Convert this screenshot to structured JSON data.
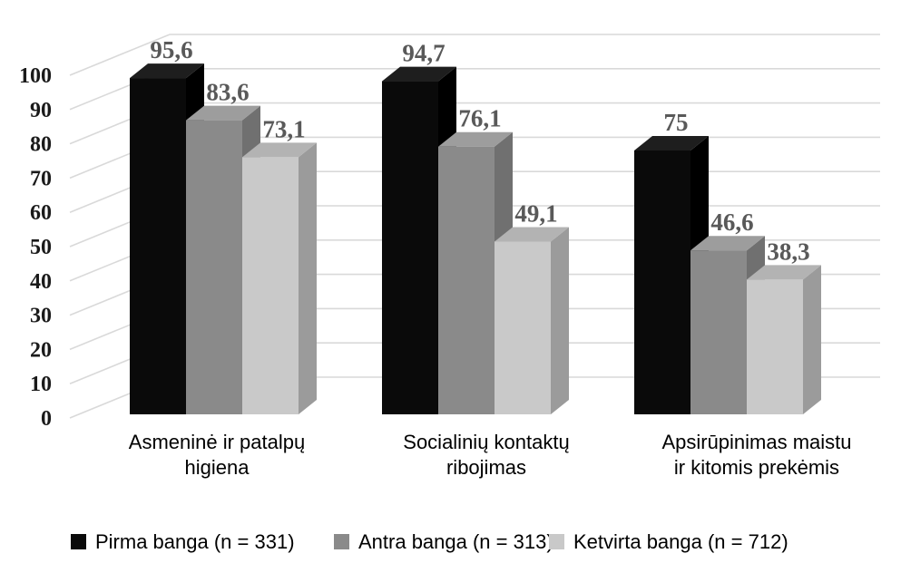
{
  "chart_data": {
    "type": "bar",
    "variant": "3d-clustered-column",
    "title": "",
    "categories": [
      "Asmeninė ir patalpų higiena",
      "Socialinių kontaktų ribojimas",
      "Apsirūpinimas maistu ir kitomis prekėmis"
    ],
    "category_label_lines": [
      [
        "Asmeninė ir patalpų",
        "higiena"
      ],
      [
        "Socialinių kontaktų",
        "ribojimas"
      ],
      [
        "Apsirūpinimas maistu",
        "ir kitomis prekėmis"
      ]
    ],
    "series": [
      {
        "name": "Pirma banga (n = 331)",
        "values": [
          95.6,
          94.7,
          75
        ],
        "labels": [
          "95,6",
          "94,7",
          "75"
        ],
        "front_color": "#0a0a0a",
        "top_color": "#1e1e1e",
        "side_color": "#000000"
      },
      {
        "name": "Antra banga (n = 313)",
        "values": [
          83.6,
          76.1,
          46.6
        ],
        "labels": [
          "83,6",
          "76,1",
          "46,6"
        ],
        "front_color": "#8a8a8a",
        "top_color": "#9d9d9d",
        "side_color": "#707070"
      },
      {
        "name": "Ketvirta banga (n = 712)",
        "values": [
          73.1,
          49.1,
          38.3
        ],
        "labels": [
          "73,1",
          "49,1",
          "38,3"
        ],
        "front_color": "#c9c9c9",
        "top_color": "#b3b3b3",
        "side_color": "#9b9b9b"
      }
    ],
    "y_axis": {
      "min": 0,
      "max": 100,
      "step": 10,
      "tick_labels": [
        "0",
        "10",
        "20",
        "30",
        "40",
        "50",
        "60",
        "70",
        "80",
        "90",
        "100"
      ]
    },
    "grid": true,
    "legend_position": "bottom",
    "decimal_separator": ",",
    "colors": {
      "value_label": "#595959",
      "tick_label": "#1a1a1a",
      "category_label": "#000000",
      "legend_label": "#000000",
      "gridline": "#d9d9d9",
      "background": "#ffffff"
    }
  }
}
